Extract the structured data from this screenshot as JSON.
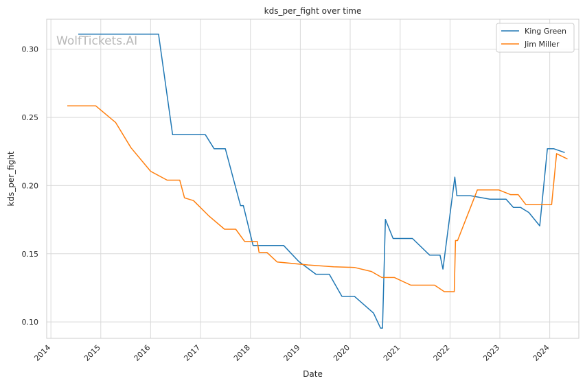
{
  "chart_data": {
    "type": "line",
    "title": "kds_per_fight over time",
    "xlabel": "Date",
    "ylabel": "kds_per_fight",
    "watermark": "WolfTickets.AI",
    "xlim": [
      "2013-12-01",
      "2024-08-01"
    ],
    "ylim": [
      0.088,
      0.322
    ],
    "x_ticks": [
      "2014",
      "2015",
      "2016",
      "2017",
      "2018",
      "2019",
      "2020",
      "2021",
      "2022",
      "2023",
      "2024"
    ],
    "y_ticks": [
      "0.10",
      "0.15",
      "0.20",
      "0.25",
      "0.30"
    ],
    "grid": true,
    "legend_position": "top-right",
    "series": [
      {
        "name": "King Green",
        "color": "#1f77b4",
        "points": [
          [
            "2014-07-20",
            0.3111
          ],
          [
            "2016-02-28",
            0.3111
          ],
          [
            "2016-06-10",
            0.2373
          ],
          [
            "2017-02-05",
            0.2373
          ],
          [
            "2017-04-10",
            0.227
          ],
          [
            "2017-07-01",
            0.227
          ],
          [
            "2017-10-20",
            0.1853
          ],
          [
            "2017-11-10",
            0.1853
          ],
          [
            "2018-01-20",
            0.1561
          ],
          [
            "2018-09-01",
            0.1561
          ],
          [
            "2018-12-20",
            0.1444
          ],
          [
            "2019-04-25",
            0.135
          ],
          [
            "2019-08-01",
            0.135
          ],
          [
            "2019-11-01",
            0.1188
          ],
          [
            "2020-02-01",
            0.1188
          ],
          [
            "2020-06-20",
            0.1065
          ],
          [
            "2020-08-10",
            0.0955
          ],
          [
            "2020-08-25",
            0.0955
          ],
          [
            "2020-09-15",
            0.1752
          ],
          [
            "2020-11-10",
            0.1612
          ],
          [
            "2021-04-01",
            0.1612
          ],
          [
            "2021-08-05",
            0.149
          ],
          [
            "2021-10-20",
            0.149
          ],
          [
            "2021-11-10",
            0.1388
          ],
          [
            "2022-02-05",
            0.2062
          ],
          [
            "2022-02-20",
            0.1925
          ],
          [
            "2022-06-01",
            0.1925
          ],
          [
            "2022-10-20",
            0.19
          ],
          [
            "2023-02-15",
            0.19
          ],
          [
            "2023-04-10",
            0.184
          ],
          [
            "2023-06-01",
            0.184
          ],
          [
            "2023-08-01",
            0.1803
          ],
          [
            "2023-10-20",
            0.1705
          ],
          [
            "2023-12-15",
            0.227
          ],
          [
            "2024-02-01",
            0.227
          ],
          [
            "2024-04-20",
            0.2242
          ]
        ]
      },
      {
        "name": "Jim Miller",
        "color": "#ff7f0e",
        "points": [
          [
            "2014-05-01",
            0.2585
          ],
          [
            "2014-11-25",
            0.2585
          ],
          [
            "2015-04-20",
            0.2462
          ],
          [
            "2015-08-10",
            0.2278
          ],
          [
            "2016-01-01",
            0.2105
          ],
          [
            "2016-05-01",
            0.204
          ],
          [
            "2016-08-01",
            0.204
          ],
          [
            "2016-09-05",
            0.191
          ],
          [
            "2016-11-10",
            0.189
          ],
          [
            "2017-03-05",
            0.1775
          ],
          [
            "2017-06-25",
            0.168
          ],
          [
            "2017-09-15",
            0.168
          ],
          [
            "2017-11-20",
            0.159
          ],
          [
            "2018-02-20",
            0.159
          ],
          [
            "2018-03-05",
            0.151
          ],
          [
            "2018-05-01",
            0.151
          ],
          [
            "2018-07-15",
            0.144
          ],
          [
            "2019-03-01",
            0.1418
          ],
          [
            "2019-09-01",
            0.1405
          ],
          [
            "2020-02-01",
            0.14
          ],
          [
            "2020-06-05",
            0.137
          ],
          [
            "2020-08-20",
            0.1326
          ],
          [
            "2020-11-20",
            0.1326
          ],
          [
            "2021-03-20",
            0.127
          ],
          [
            "2021-09-10",
            0.127
          ],
          [
            "2021-11-20",
            0.1222
          ],
          [
            "2022-02-01",
            0.1222
          ],
          [
            "2022-02-10",
            0.1597
          ],
          [
            "2022-02-25",
            0.1597
          ],
          [
            "2022-07-20",
            0.1968
          ],
          [
            "2022-12-25",
            0.1968
          ],
          [
            "2023-03-20",
            0.1934
          ],
          [
            "2023-05-15",
            0.1934
          ],
          [
            "2023-07-10",
            0.1861
          ],
          [
            "2024-01-15",
            0.1861
          ],
          [
            "2024-02-20",
            0.2234
          ],
          [
            "2024-05-10",
            0.2195
          ]
        ]
      }
    ]
  }
}
